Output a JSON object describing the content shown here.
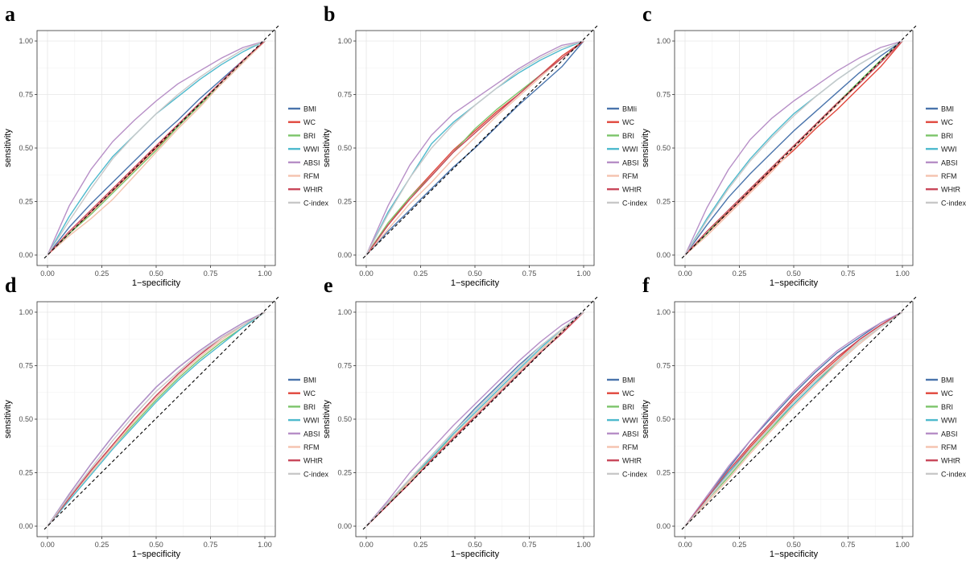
{
  "figure": {
    "panel_count": 6
  },
  "chart_data": [
    {
      "panel": "a",
      "type": "line",
      "xlabel": "1−specificity",
      "ylabel": "sensitivity",
      "xlim": [
        0,
        1
      ],
      "ylim": [
        0,
        1
      ],
      "ticks": [
        "0.00",
        "0.25",
        "0.50",
        "0.75",
        "1.00"
      ],
      "reference_line": "diagonal dashed",
      "grid": true,
      "legend_position": "right",
      "x": [
        0,
        0.1,
        0.2,
        0.3,
        0.4,
        0.5,
        0.6,
        0.7,
        0.8,
        0.9,
        1
      ],
      "series": [
        {
          "name": "BMI",
          "color": "#4A74AC",
          "values": [
            0,
            0.13,
            0.24,
            0.34,
            0.44,
            0.54,
            0.63,
            0.73,
            0.82,
            0.91,
            1
          ]
        },
        {
          "name": "WC",
          "color": "#E0473C",
          "values": [
            0,
            0.1,
            0.2,
            0.3,
            0.4,
            0.5,
            0.6,
            0.7,
            0.8,
            0.9,
            1
          ]
        },
        {
          "name": "BRI",
          "color": "#7CC46A",
          "values": [
            0,
            0.1,
            0.19,
            0.29,
            0.39,
            0.49,
            0.6,
            0.7,
            0.8,
            0.9,
            1
          ]
        },
        {
          "name": "WWI",
          "color": "#4EBACD",
          "values": [
            0,
            0.18,
            0.33,
            0.46,
            0.56,
            0.66,
            0.74,
            0.82,
            0.89,
            0.95,
            1
          ]
        },
        {
          "name": "ABSI",
          "color": "#B78FC7",
          "values": [
            0,
            0.23,
            0.4,
            0.53,
            0.63,
            0.72,
            0.8,
            0.86,
            0.92,
            0.97,
            1
          ]
        },
        {
          "name": "RFM",
          "color": "#F4C2AE",
          "values": [
            0,
            0.09,
            0.17,
            0.26,
            0.37,
            0.48,
            0.59,
            0.69,
            0.8,
            0.9,
            1
          ]
        },
        {
          "name": "WHtR",
          "color": "#C9485B",
          "values": [
            0,
            0.11,
            0.21,
            0.31,
            0.41,
            0.51,
            0.61,
            0.71,
            0.81,
            0.91,
            1
          ]
        },
        {
          "name": "C-index",
          "color": "#C8C8C8",
          "values": [
            0,
            0.16,
            0.31,
            0.45,
            0.56,
            0.66,
            0.75,
            0.83,
            0.9,
            0.96,
            1
          ]
        }
      ]
    },
    {
      "panel": "b",
      "type": "line",
      "xlabel": "1−specificity",
      "ylabel": "sensitivity",
      "xlim": [
        0,
        1
      ],
      "ylim": [
        0,
        1
      ],
      "ticks": [
        "0.00",
        "0.25",
        "0.50",
        "0.75",
        "1.00"
      ],
      "reference_line": "diagonal dashed",
      "grid": true,
      "legend_position": "right",
      "x": [
        0,
        0.1,
        0.2,
        0.3,
        0.4,
        0.5,
        0.6,
        0.7,
        0.8,
        0.9,
        1
      ],
      "series": [
        {
          "name": "BMIi",
          "color": "#4A74AC",
          "values": [
            0,
            0.11,
            0.21,
            0.31,
            0.41,
            0.5,
            0.6,
            0.7,
            0.79,
            0.88,
            1
          ]
        },
        {
          "name": "WC",
          "color": "#E0473C",
          "values": [
            0,
            0.14,
            0.27,
            0.38,
            0.49,
            0.58,
            0.67,
            0.75,
            0.84,
            0.93,
            1
          ]
        },
        {
          "name": "BRI",
          "color": "#7CC46A",
          "values": [
            0,
            0.15,
            0.27,
            0.37,
            0.48,
            0.59,
            0.68,
            0.76,
            0.84,
            0.92,
            1
          ]
        },
        {
          "name": "WWI",
          "color": "#4EBACD",
          "values": [
            0,
            0.2,
            0.36,
            0.52,
            0.62,
            0.7,
            0.78,
            0.85,
            0.91,
            0.96,
            1
          ]
        },
        {
          "name": "ABSI",
          "color": "#B78FC7",
          "values": [
            0,
            0.23,
            0.42,
            0.56,
            0.66,
            0.73,
            0.8,
            0.87,
            0.93,
            0.98,
            1
          ]
        },
        {
          "name": "RFM",
          "color": "#F4C2AE",
          "values": [
            0,
            0.12,
            0.24,
            0.34,
            0.45,
            0.55,
            0.65,
            0.74,
            0.83,
            0.92,
            1
          ]
        },
        {
          "name": "WHtR",
          "color": "#C9485B",
          "values": [
            0,
            0.14,
            0.26,
            0.37,
            0.48,
            0.57,
            0.66,
            0.75,
            0.84,
            0.92,
            1
          ]
        },
        {
          "name": "C-index",
          "color": "#C8C8C8",
          "values": [
            0,
            0.19,
            0.36,
            0.5,
            0.61,
            0.7,
            0.78,
            0.86,
            0.92,
            0.97,
            1
          ]
        }
      ]
    },
    {
      "panel": "c",
      "type": "line",
      "xlabel": "1−specificity",
      "ylabel": "sensitivity",
      "xlim": [
        0,
        1
      ],
      "ylim": [
        0,
        1
      ],
      "ticks": [
        "0.00",
        "0.25",
        "0.50",
        "0.75",
        "1.00"
      ],
      "reference_line": "diagonal dashed",
      "grid": true,
      "legend_position": "right",
      "x": [
        0,
        0.1,
        0.2,
        0.3,
        0.4,
        0.5,
        0.6,
        0.7,
        0.8,
        0.9,
        1
      ],
      "series": [
        {
          "name": "BMI",
          "color": "#4A74AC",
          "values": [
            0,
            0.14,
            0.27,
            0.38,
            0.48,
            0.58,
            0.67,
            0.76,
            0.85,
            0.93,
            1
          ]
        },
        {
          "name": "WC",
          "color": "#E0473C",
          "values": [
            0,
            0.1,
            0.2,
            0.3,
            0.4,
            0.49,
            0.59,
            0.68,
            0.78,
            0.88,
            1
          ]
        },
        {
          "name": "BRI",
          "color": "#7CC46A",
          "values": [
            0,
            0.1,
            0.21,
            0.31,
            0.41,
            0.51,
            0.61,
            0.71,
            0.81,
            0.91,
            1
          ]
        },
        {
          "name": "WWI",
          "color": "#4EBACD",
          "values": [
            0,
            0.17,
            0.32,
            0.45,
            0.56,
            0.66,
            0.74,
            0.82,
            0.89,
            0.95,
            1
          ]
        },
        {
          "name": "ABSI",
          "color": "#B78FC7",
          "values": [
            0,
            0.22,
            0.4,
            0.54,
            0.64,
            0.72,
            0.79,
            0.86,
            0.92,
            0.97,
            1
          ]
        },
        {
          "name": "RFM",
          "color": "#F4C2AE",
          "values": [
            0,
            0.09,
            0.19,
            0.29,
            0.39,
            0.5,
            0.6,
            0.7,
            0.8,
            0.9,
            1
          ]
        },
        {
          "name": "WHtR",
          "color": "#C9485B",
          "values": [
            0,
            0.11,
            0.21,
            0.31,
            0.41,
            0.51,
            0.61,
            0.71,
            0.8,
            0.9,
            1
          ]
        },
        {
          "name": "C-index",
          "color": "#C8C8C8",
          "values": [
            0,
            0.16,
            0.31,
            0.44,
            0.55,
            0.65,
            0.74,
            0.82,
            0.89,
            0.95,
            1
          ]
        }
      ]
    },
    {
      "panel": "d",
      "type": "line",
      "xlabel": "1−specificity",
      "ylabel": "sensitivity",
      "xlim": [
        0,
        1
      ],
      "ylim": [
        0,
        1
      ],
      "ticks": [
        "0.00",
        "0.25",
        "0.50",
        "0.75",
        "1.00"
      ],
      "reference_line": "diagonal dashed",
      "grid": true,
      "legend_position": "right",
      "x": [
        0,
        0.1,
        0.2,
        0.3,
        0.4,
        0.5,
        0.6,
        0.7,
        0.8,
        0.9,
        1
      ],
      "series": [
        {
          "name": "BMI",
          "color": "#4A74AC",
          "values": [
            0,
            0.15,
            0.29,
            0.42,
            0.54,
            0.65,
            0.74,
            0.82,
            0.89,
            0.95,
            1
          ]
        },
        {
          "name": "WC",
          "color": "#E0473C",
          "values": [
            0,
            0.13,
            0.26,
            0.38,
            0.5,
            0.61,
            0.71,
            0.8,
            0.88,
            0.94,
            1
          ]
        },
        {
          "name": "BRI",
          "color": "#7CC46A",
          "values": [
            0,
            0.13,
            0.25,
            0.37,
            0.48,
            0.59,
            0.69,
            0.78,
            0.86,
            0.93,
            1
          ]
        },
        {
          "name": "WWI",
          "color": "#4EBACD",
          "values": [
            0,
            0.12,
            0.24,
            0.36,
            0.47,
            0.58,
            0.68,
            0.77,
            0.85,
            0.93,
            1
          ]
        },
        {
          "name": "ABSI",
          "color": "#B78FC7",
          "values": [
            0,
            0.15,
            0.29,
            0.42,
            0.54,
            0.65,
            0.74,
            0.82,
            0.89,
            0.95,
            1
          ]
        },
        {
          "name": "RFM",
          "color": "#F4C2AE",
          "values": [
            0,
            0.13,
            0.25,
            0.37,
            0.49,
            0.6,
            0.7,
            0.79,
            0.87,
            0.94,
            1
          ]
        },
        {
          "name": "WHtR",
          "color": "#C9485B",
          "values": [
            0,
            0.13,
            0.26,
            0.38,
            0.5,
            0.61,
            0.71,
            0.8,
            0.88,
            0.94,
            1
          ]
        },
        {
          "name": "C-index",
          "color": "#C8C8C8",
          "values": [
            0,
            0.14,
            0.27,
            0.4,
            0.52,
            0.63,
            0.72,
            0.81,
            0.88,
            0.94,
            1
          ]
        }
      ]
    },
    {
      "panel": "e",
      "type": "line",
      "xlabel": "1−specificity",
      "ylabel": "sensitivity",
      "xlim": [
        0,
        1
      ],
      "ylim": [
        0,
        1
      ],
      "ticks": [
        "0.00",
        "0.25",
        "0.50",
        "0.75",
        "1.00"
      ],
      "reference_line": "diagonal dashed",
      "grid": true,
      "legend_position": "right",
      "x": [
        0,
        0.1,
        0.2,
        0.3,
        0.4,
        0.5,
        0.6,
        0.7,
        0.8,
        0.9,
        1
      ],
      "series": [
        {
          "name": "BMI",
          "color": "#4A74AC",
          "values": [
            0,
            0.11,
            0.22,
            0.33,
            0.44,
            0.55,
            0.65,
            0.75,
            0.84,
            0.92,
            1
          ]
        },
        {
          "name": "WC",
          "color": "#E0473C",
          "values": [
            0,
            0.1,
            0.21,
            0.31,
            0.41,
            0.52,
            0.62,
            0.72,
            0.82,
            0.91,
            1
          ]
        },
        {
          "name": "BRI",
          "color": "#7CC46A",
          "values": [
            0,
            0.11,
            0.21,
            0.32,
            0.42,
            0.52,
            0.62,
            0.72,
            0.82,
            0.91,
            1
          ]
        },
        {
          "name": "WWI",
          "color": "#4EBACD",
          "values": [
            0,
            0.11,
            0.22,
            0.32,
            0.43,
            0.53,
            0.63,
            0.73,
            0.83,
            0.92,
            1
          ]
        },
        {
          "name": "ABSI",
          "color": "#B78FC7",
          "values": [
            0,
            0.12,
            0.25,
            0.36,
            0.47,
            0.57,
            0.67,
            0.77,
            0.86,
            0.94,
            1
          ]
        },
        {
          "name": "RFM",
          "color": "#F4C2AE",
          "values": [
            0,
            0.1,
            0.21,
            0.31,
            0.42,
            0.52,
            0.62,
            0.72,
            0.82,
            0.91,
            1
          ]
        },
        {
          "name": "WHtR",
          "color": "#C9485B",
          "values": [
            0,
            0.1,
            0.2,
            0.31,
            0.41,
            0.51,
            0.61,
            0.71,
            0.81,
            0.9,
            1
          ]
        },
        {
          "name": "C-index",
          "color": "#C8C8C8",
          "values": [
            0,
            0.11,
            0.22,
            0.33,
            0.44,
            0.54,
            0.64,
            0.74,
            0.84,
            0.92,
            1
          ]
        }
      ]
    },
    {
      "panel": "f",
      "type": "line",
      "xlabel": "1−specificity",
      "ylabel": "sensitivity",
      "xlim": [
        0,
        1
      ],
      "ylim": [
        0,
        1
      ],
      "ticks": [
        "0.00",
        "0.25",
        "0.50",
        "0.75",
        "1.00"
      ],
      "reference_line": "diagonal dashed",
      "grid": true,
      "legend_position": "right",
      "x": [
        0,
        0.1,
        0.2,
        0.3,
        0.4,
        0.5,
        0.6,
        0.7,
        0.8,
        0.9,
        1
      ],
      "series": [
        {
          "name": "BMI",
          "color": "#4A74AC",
          "values": [
            0,
            0.14,
            0.27,
            0.4,
            0.51,
            0.62,
            0.72,
            0.81,
            0.88,
            0.95,
            1
          ]
        },
        {
          "name": "WC",
          "color": "#E0473C",
          "values": [
            0,
            0.13,
            0.25,
            0.37,
            0.48,
            0.59,
            0.69,
            0.78,
            0.87,
            0.94,
            1
          ]
        },
        {
          "name": "BRI",
          "color": "#7CC46A",
          "values": [
            0,
            0.12,
            0.23,
            0.35,
            0.46,
            0.57,
            0.67,
            0.77,
            0.86,
            0.93,
            1
          ]
        },
        {
          "name": "WWI",
          "color": "#4EBACD",
          "values": [
            0,
            0.13,
            0.25,
            0.36,
            0.47,
            0.57,
            0.67,
            0.76,
            0.85,
            0.93,
            1
          ]
        },
        {
          "name": "ABSI",
          "color": "#B78FC7",
          "values": [
            0,
            0.14,
            0.28,
            0.4,
            0.52,
            0.63,
            0.73,
            0.82,
            0.89,
            0.95,
            1
          ]
        },
        {
          "name": "RFM",
          "color": "#F4C2AE",
          "values": [
            0,
            0.11,
            0.22,
            0.34,
            0.45,
            0.56,
            0.66,
            0.76,
            0.85,
            0.93,
            1
          ]
        },
        {
          "name": "WHtR",
          "color": "#C9485B",
          "values": [
            0,
            0.13,
            0.26,
            0.38,
            0.49,
            0.6,
            0.7,
            0.79,
            0.87,
            0.94,
            1
          ]
        },
        {
          "name": "C-index",
          "color": "#C8C8C8",
          "values": [
            0,
            0.12,
            0.24,
            0.36,
            0.47,
            0.58,
            0.68,
            0.77,
            0.86,
            0.93,
            1
          ]
        }
      ]
    }
  ]
}
